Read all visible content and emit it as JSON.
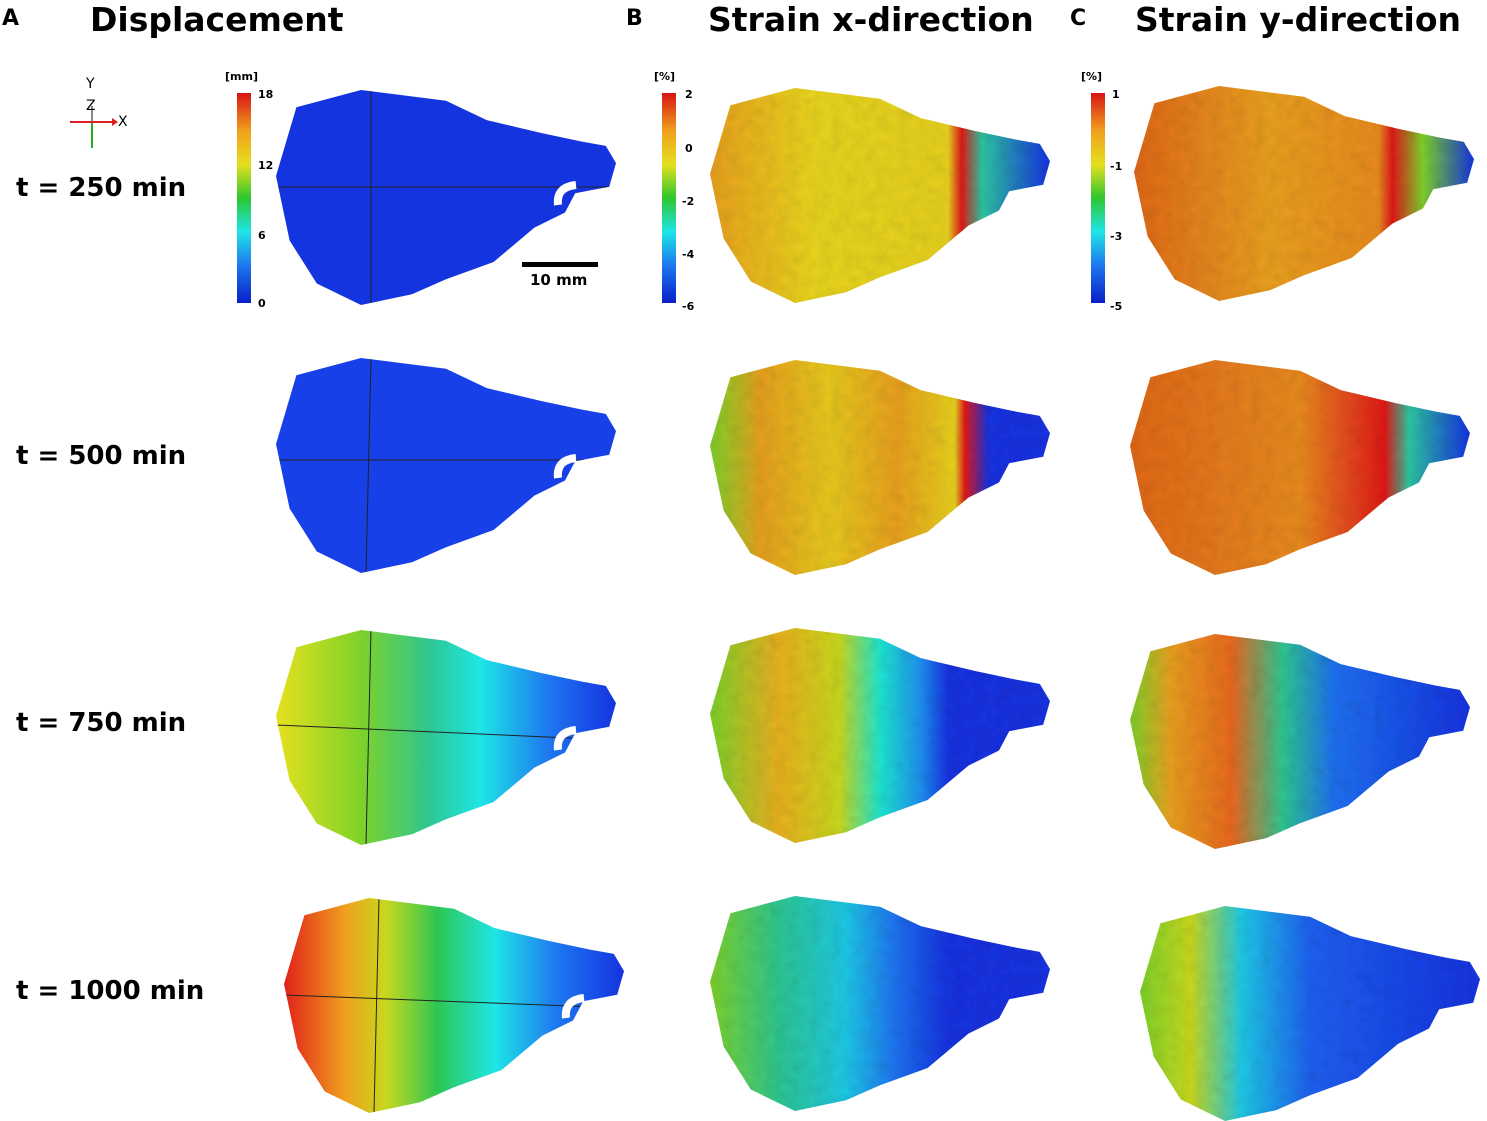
{
  "panels": {
    "a": {
      "letter": "A",
      "title": "Displacement"
    },
    "b": {
      "letter": "B",
      "title": "Strain x-direction"
    },
    "c": {
      "letter": "C",
      "title": "Strain y-direction"
    }
  },
  "times": [
    "t = 250 min",
    "t = 500 min",
    "t = 750 min",
    "t = 1000 min"
  ],
  "axes": {
    "y": "Y",
    "z": "Z",
    "x": "X"
  },
  "scale_bar": "10 mm",
  "colorbars": {
    "displacement": {
      "unit": "[mm]",
      "ticks": [
        "18",
        "12",
        "6",
        "0"
      ]
    },
    "strain_x": {
      "unit": "[%]",
      "ticks": [
        "2",
        "0",
        "-2",
        "-4",
        "-6"
      ]
    },
    "strain_y": {
      "unit": "[%]",
      "ticks": [
        "1",
        "-1",
        "-3",
        "-5"
      ]
    }
  },
  "colors": {
    "jet_red": "#e0201a",
    "jet_orange": "#f08c1e",
    "jet_yellow": "#e6e01e",
    "jet_green": "#2ec62e",
    "jet_cyan": "#1ee6e6",
    "jet_blue": "#1432e6",
    "jet_dark_blue": "#0a1ec8"
  }
}
